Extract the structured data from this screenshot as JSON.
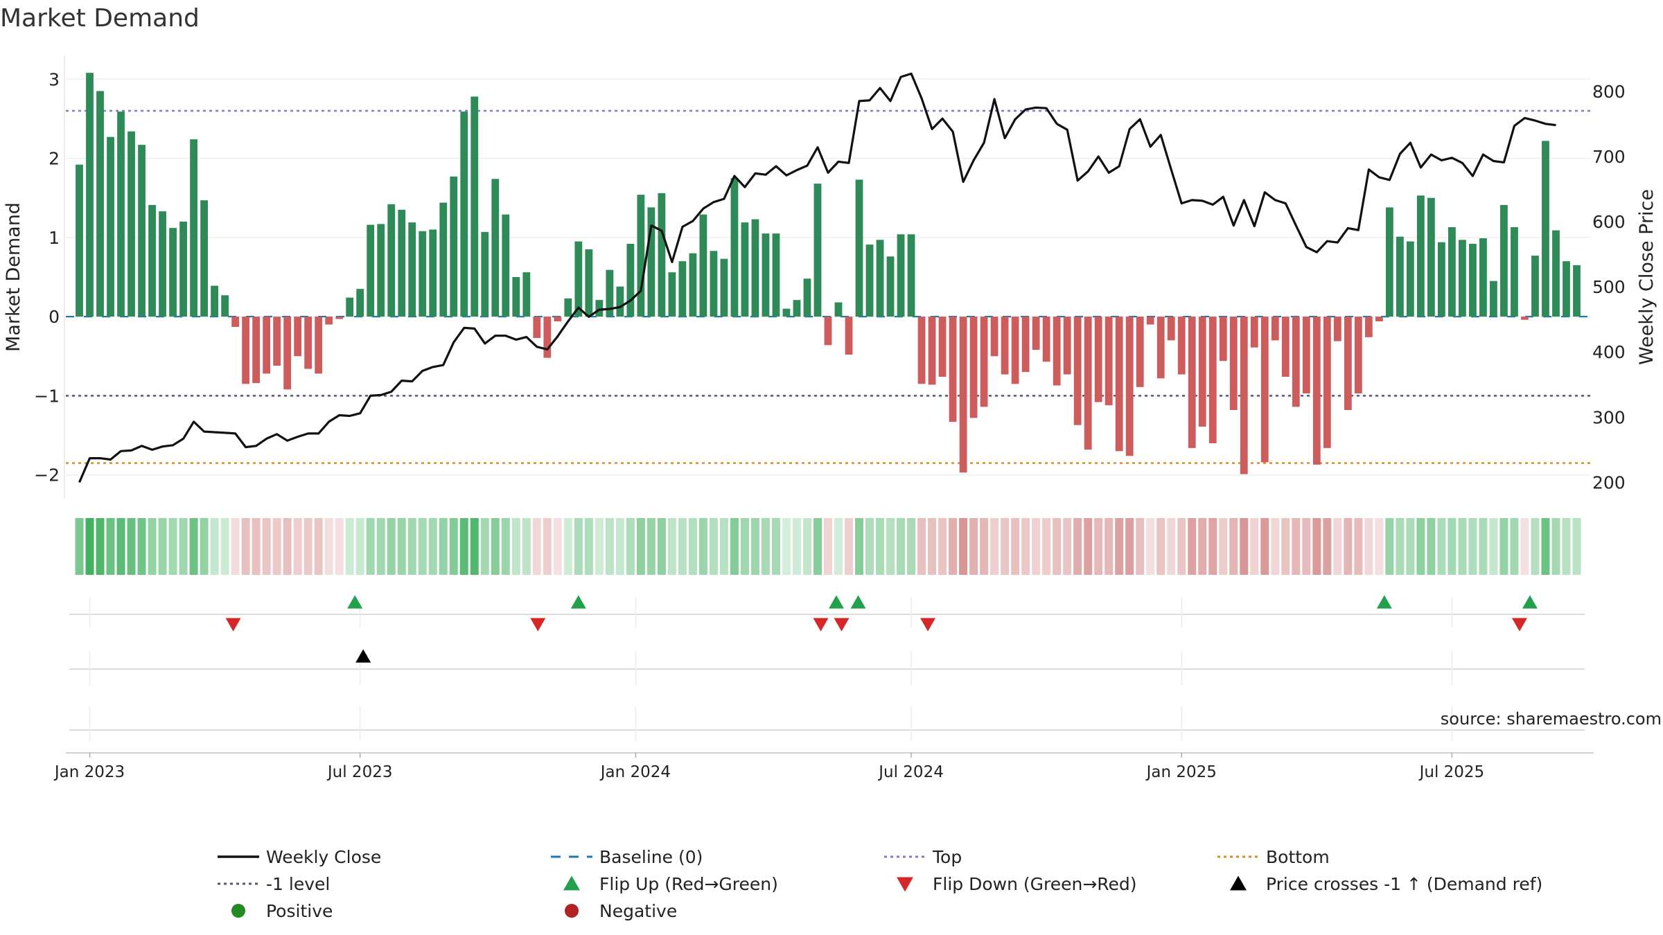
{
  "chart_data": {
    "type": "bar",
    "title": "Market Demand",
    "ylabel_left": "Market Demand",
    "ylabel_right": "Weekly Close Price",
    "source": "source: sharemaestro.com",
    "left_ylim": [
      -2.3,
      3.3
    ],
    "left_yticks": [
      "−2",
      "−1",
      "0",
      "1",
      "2",
      "3"
    ],
    "right_ylim": [
      175,
      855
    ],
    "right_yticks": [
      "200",
      "300",
      "400",
      "500",
      "600",
      "700",
      "800"
    ],
    "xlim_weeks": [
      -1.3,
      145.3
    ],
    "x_ticks": [
      {
        "label": "Jan 2023",
        "week": 1
      },
      {
        "label": "Jul 2023",
        "week": 27
      },
      {
        "label": "Jan 2024",
        "week": 53.5
      },
      {
        "label": "Jul 2024",
        "week": 80
      },
      {
        "label": "Jan 2025",
        "week": 106
      },
      {
        "label": "Jul 2025",
        "week": 132
      }
    ],
    "reference_lines": {
      "top": 2.6,
      "minus1": -1.0,
      "bottom": -1.85,
      "baseline": 0
    },
    "demand": [
      1.92,
      3.08,
      2.85,
      2.27,
      2.59,
      2.34,
      2.17,
      1.41,
      1.33,
      1.12,
      1.2,
      2.24,
      1.47,
      0.39,
      0.27,
      -0.13,
      -0.85,
      -0.84,
      -0.72,
      -0.62,
      -0.92,
      -0.5,
      -0.66,
      -0.72,
      -0.1,
      -0.03,
      0.24,
      0.35,
      1.16,
      1.17,
      1.42,
      1.35,
      1.19,
      1.08,
      1.1,
      1.44,
      1.77,
      2.59,
      2.78,
      1.07,
      1.74,
      1.29,
      0.5,
      0.56,
      -0.27,
      -0.52,
      -0.06,
      0.23,
      0.95,
      0.85,
      0.21,
      0.59,
      0.38,
      0.92,
      1.54,
      1.38,
      1.56,
      0.56,
      0.7,
      0.8,
      1.29,
      0.83,
      0.73,
      1.75,
      1.19,
      1.23,
      1.05,
      1.05,
      0.1,
      0.21,
      0.48,
      1.68,
      -0.36,
      0.18,
      -0.48,
      1.73,
      0.91,
      0.97,
      0.76,
      1.04,
      1.04,
      -0.85,
      -0.86,
      -0.76,
      -1.33,
      -1.97,
      -1.28,
      -1.14,
      -0.5,
      -0.73,
      -0.85,
      -0.7,
      -0.42,
      -0.57,
      -0.87,
      -0.73,
      -1.37,
      -1.68,
      -1.08,
      -1.12,
      -1.7,
      -1.76,
      -0.89,
      -0.1,
      -0.78,
      -0.3,
      -0.73,
      -1.66,
      -1.39,
      -1.6,
      -0.56,
      -1.18,
      -1.99,
      -0.39,
      -1.84,
      -0.3,
      -0.76,
      -1.14,
      -0.97,
      -1.87,
      -1.66,
      -0.31,
      -1.18,
      -0.97,
      -0.26,
      -0.06,
      1.38,
      1.01,
      0.95,
      1.53,
      1.5,
      0.94,
      1.13,
      0.97,
      0.92,
      0.99,
      0.45,
      1.41,
      1.13,
      -0.04,
      0.77,
      2.22,
      1.09,
      0.7,
      0.65
    ],
    "weekly_close": [
      [
        0,
        200
      ],
      [
        1,
        237
      ],
      [
        2,
        237
      ],
      [
        3,
        235
      ],
      [
        4,
        248
      ],
      [
        5,
        249
      ],
      [
        6,
        256
      ],
      [
        7,
        250
      ],
      [
        8,
        255
      ],
      [
        9,
        257
      ],
      [
        10,
        267
      ],
      [
        11,
        293
      ],
      [
        12,
        278
      ],
      [
        13,
        277
      ],
      [
        14,
        276
      ],
      [
        15,
        275
      ],
      [
        16,
        254
      ],
      [
        17,
        256
      ],
      [
        18,
        267
      ],
      [
        19,
        274
      ],
      [
        20,
        264
      ],
      [
        21,
        270
      ],
      [
        22,
        275
      ],
      [
        23,
        275
      ],
      [
        24,
        293
      ],
      [
        25,
        303
      ],
      [
        26,
        302
      ],
      [
        27,
        306
      ],
      [
        28,
        333
      ],
      [
        29,
        334
      ],
      [
        30,
        339
      ],
      [
        31,
        356
      ],
      [
        32,
        355
      ],
      [
        33,
        371
      ],
      [
        34,
        377
      ],
      [
        35,
        380
      ],
      [
        36,
        415
      ],
      [
        37,
        437
      ],
      [
        38,
        436
      ],
      [
        39,
        413
      ],
      [
        40,
        425
      ],
      [
        41,
        425
      ],
      [
        42,
        419
      ],
      [
        43,
        423
      ],
      [
        44,
        408
      ],
      [
        45,
        404
      ],
      [
        46,
        424
      ],
      [
        47,
        447
      ],
      [
        48,
        468
      ],
      [
        49,
        454
      ],
      [
        50,
        465
      ],
      [
        51,
        466
      ],
      [
        52,
        469
      ],
      [
        53,
        479
      ],
      [
        54,
        494
      ],
      [
        55,
        594
      ],
      [
        56,
        586
      ],
      [
        57,
        538
      ],
      [
        58,
        592
      ],
      [
        59,
        601
      ],
      [
        60,
        620
      ],
      [
        61,
        630
      ],
      [
        62,
        635
      ],
      [
        63,
        670
      ],
      [
        64,
        653
      ],
      [
        65,
        674
      ],
      [
        66,
        672
      ],
      [
        67,
        685
      ],
      [
        68,
        671
      ],
      [
        69,
        679
      ],
      [
        70,
        686
      ],
      [
        71,
        714
      ],
      [
        72,
        675
      ],
      [
        73,
        692
      ],
      [
        74,
        690
      ],
      [
        75,
        785
      ],
      [
        76,
        786
      ],
      [
        77,
        805
      ],
      [
        78,
        785
      ],
      [
        79,
        822
      ],
      [
        80,
        827
      ],
      [
        81,
        789
      ],
      [
        82,
        742
      ],
      [
        83,
        758
      ],
      [
        84,
        738
      ],
      [
        85,
        661
      ],
      [
        86,
        694
      ],
      [
        87,
        721
      ],
      [
        88,
        788
      ],
      [
        89,
        728
      ],
      [
        90,
        757
      ],
      [
        91,
        772
      ],
      [
        92,
        775
      ],
      [
        93,
        774
      ],
      [
        94,
        750
      ],
      [
        95,
        741
      ],
      [
        96,
        663
      ],
      [
        97,
        677
      ],
      [
        98,
        700
      ],
      [
        99,
        675
      ],
      [
        100,
        685
      ],
      [
        101,
        742
      ],
      [
        102,
        757
      ],
      [
        103,
        715
      ],
      [
        104,
        733
      ],
      [
        105,
        680
      ],
      [
        106,
        628
      ],
      [
        107,
        633
      ],
      [
        108,
        632
      ],
      [
        109,
        626
      ],
      [
        110,
        638
      ],
      [
        111,
        594
      ],
      [
        112,
        633
      ],
      [
        113,
        593
      ],
      [
        114,
        645
      ],
      [
        115,
        633
      ],
      [
        116,
        628
      ],
      [
        117,
        594
      ],
      [
        118,
        561
      ],
      [
        119,
        553
      ],
      [
        120,
        570
      ],
      [
        121,
        568
      ],
      [
        122,
        590
      ],
      [
        123,
        587
      ],
      [
        124,
        680
      ],
      [
        125,
        668
      ],
      [
        126,
        664
      ],
      [
        127,
        704
      ],
      [
        128,
        721
      ],
      [
        129,
        683
      ],
      [
        130,
        703
      ],
      [
        131,
        694
      ],
      [
        132,
        698
      ],
      [
        133,
        690
      ],
      [
        134,
        670
      ],
      [
        135,
        703
      ],
      [
        136,
        693
      ],
      [
        137,
        691
      ],
      [
        138,
        747
      ],
      [
        139,
        759
      ],
      [
        140,
        755
      ],
      [
        141,
        750
      ],
      [
        142,
        748
      ]
    ],
    "flip_up_weeks": [
      26.5,
      48,
      72.8,
      74.9,
      125.5,
      139.5
    ],
    "flip_down_weeks": [
      14.8,
      44.1,
      71.3,
      73.3,
      81.6,
      138.5
    ],
    "price_cross_weeks": [
      27.3
    ],
    "colors": {
      "positive_bar": "#2e8b57",
      "negative_bar": "#cd5c5c",
      "close_line": "#111111",
      "top_line": "#7b7bd0",
      "minus1_line": "#555577",
      "bottom_line": "#e08a1e",
      "baseline": "#1f77b4",
      "flip_up": "#22a04b",
      "flip_down": "#d62728",
      "cross": "#000000",
      "positive_dot": "#228b22",
      "negative_dot": "#b22222"
    },
    "legend": [
      {
        "label": "Weekly Close",
        "marker": "line-solid",
        "color": "#111111"
      },
      {
        "label": "Baseline (0)",
        "marker": "line-dash",
        "color": "#1f77b4"
      },
      {
        "label": "Top",
        "marker": "line-dot",
        "color": "#7b7bd0"
      },
      {
        "label": "Bottom",
        "marker": "line-dot",
        "color": "#e08a1e"
      },
      {
        "label": "-1 level",
        "marker": "line-dot",
        "color": "#555577"
      },
      {
        "label": "Flip Up (Red→Green)",
        "marker": "triangle-up",
        "color": "#22a04b"
      },
      {
        "label": "Flip Down (Green→Red)",
        "marker": "triangle-down",
        "color": "#d62728"
      },
      {
        "label": "Price crosses -1 ↑ (Demand ref)",
        "marker": "triangle-up",
        "color": "#000000"
      },
      {
        "label": "Positive",
        "marker": "circle",
        "color": "#228b22"
      },
      {
        "label": "Negative",
        "marker": "circle",
        "color": "#b22222"
      }
    ]
  }
}
